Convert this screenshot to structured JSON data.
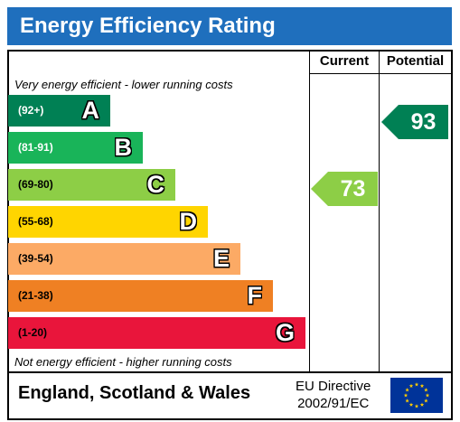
{
  "title": "Energy Efficiency Rating",
  "columns": {
    "current": "Current",
    "potential": "Potential"
  },
  "top_note": "Very energy efficient - lower running costs",
  "bottom_note": "Not energy efficient - higher running costs",
  "bands": [
    {
      "range": "(92+)",
      "letter": "A",
      "color": "#008054",
      "range_color": "#ffffff"
    },
    {
      "range": "(81-91)",
      "letter": "B",
      "color": "#19b459",
      "range_color": "#ffffff"
    },
    {
      "range": "(69-80)",
      "letter": "C",
      "color": "#8dce46",
      "range_color": "#000000"
    },
    {
      "range": "(55-68)",
      "letter": "D",
      "color": "#ffd500",
      "range_color": "#000000"
    },
    {
      "range": "(39-54)",
      "letter": "E",
      "color": "#fcaa65",
      "range_color": "#000000"
    },
    {
      "range": "(21-38)",
      "letter": "F",
      "color": "#ef8023",
      "range_color": "#000000"
    },
    {
      "range": "(1-20)",
      "letter": "G",
      "color": "#e9153b",
      "range_color": "#000000"
    }
  ],
  "current": {
    "value": "73",
    "band": "C",
    "color": "#8dce46"
  },
  "potential": {
    "value": "93",
    "band": "A",
    "color": "#008054"
  },
  "footer": {
    "region": "England, Scotland & Wales",
    "directive_line1": "EU Directive",
    "directive_line2": "2002/91/EC"
  },
  "header_color": "#1f6fbd",
  "flag_icon": "eu-flag-icon"
}
